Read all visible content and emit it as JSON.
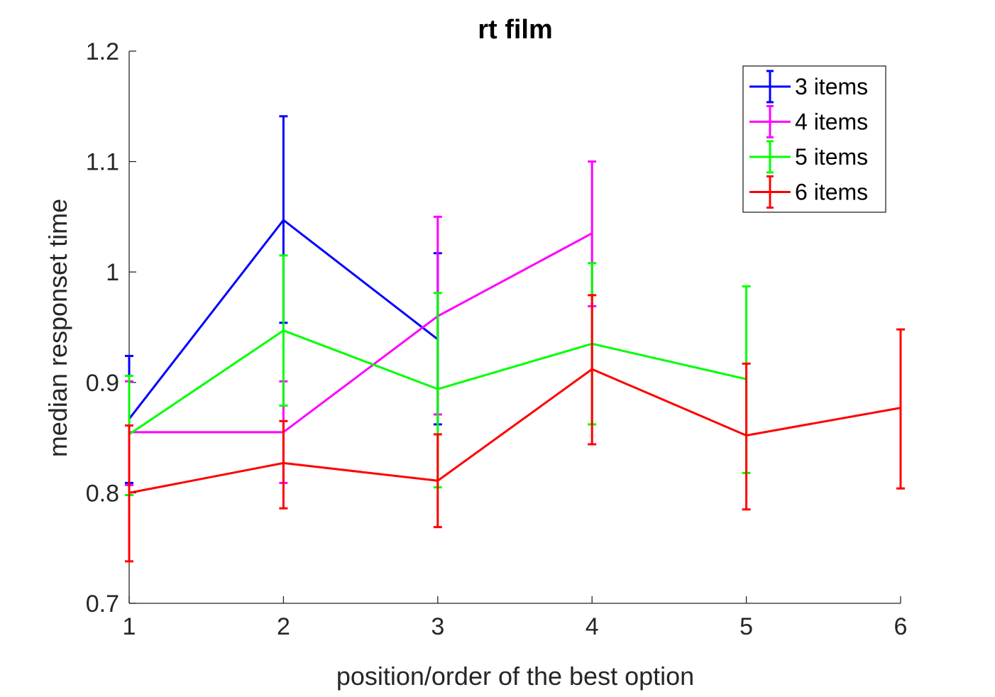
{
  "chart_data": {
    "type": "line",
    "title": "rt film",
    "xlabel": "position/order of the best option",
    "ylabel": "median responset time",
    "xlim": [
      1,
      6
    ],
    "ylim": [
      0.7,
      1.2
    ],
    "xticks": [
      1,
      2,
      3,
      4,
      5,
      6
    ],
    "yticks": [
      0.7,
      0.8,
      0.9,
      1,
      1.1,
      1.2
    ],
    "xtick_labels": [
      "1",
      "2",
      "3",
      "4",
      "5",
      "6"
    ],
    "ytick_labels": [
      "0.7",
      "0.8",
      "0.9",
      "1",
      "1.1",
      "1.2"
    ],
    "grid": false,
    "legend_position": "top-right",
    "series": [
      {
        "name": "3 items",
        "color": "#0000ff",
        "x": [
          1,
          2,
          3
        ],
        "y": [
          0.867,
          1.047,
          0.939
        ],
        "err_low": [
          0.809,
          0.954,
          0.862
        ],
        "err_high": [
          0.924,
          1.141,
          1.017
        ]
      },
      {
        "name": "4 items",
        "color": "#ff00ff",
        "x": [
          1,
          2,
          3,
          4
        ],
        "y": [
          0.855,
          0.855,
          0.96,
          1.035
        ],
        "err_low": [
          0.807,
          0.809,
          0.871,
          0.969
        ],
        "err_high": [
          0.901,
          0.901,
          1.05,
          1.1
        ]
      },
      {
        "name": "5 items",
        "color": "#00ff00",
        "x": [
          1,
          2,
          3,
          4,
          5
        ],
        "y": [
          0.853,
          0.947,
          0.894,
          0.935,
          0.903
        ],
        "err_low": [
          0.798,
          0.879,
          0.805,
          0.862,
          0.818
        ],
        "err_high": [
          0.906,
          1.015,
          0.981,
          1.008,
          0.987
        ]
      },
      {
        "name": "6 items",
        "color": "#ff0000",
        "x": [
          1,
          2,
          3,
          4,
          5,
          6
        ],
        "y": [
          0.8,
          0.827,
          0.811,
          0.912,
          0.852,
          0.877
        ],
        "err_low": [
          0.738,
          0.786,
          0.769,
          0.844,
          0.785,
          0.804
        ],
        "err_high": [
          0.861,
          0.865,
          0.853,
          0.979,
          0.917,
          0.948
        ]
      }
    ]
  }
}
